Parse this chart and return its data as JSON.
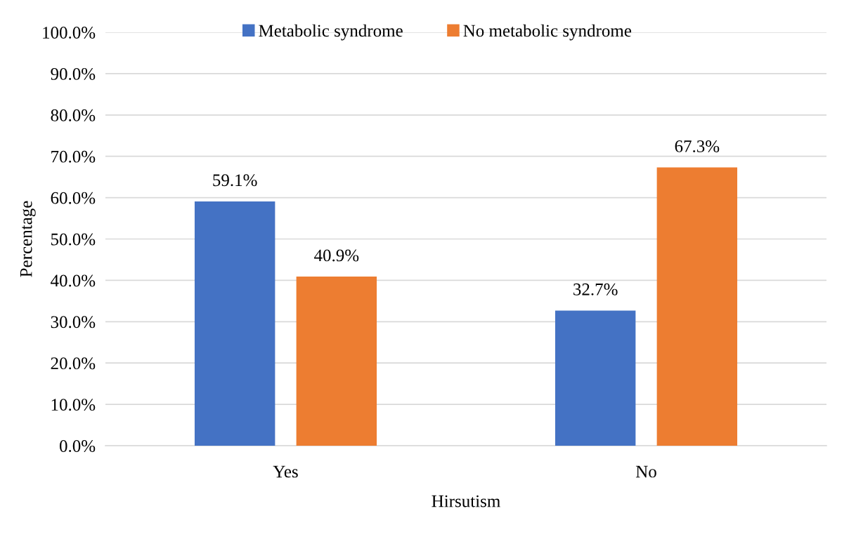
{
  "chart_data": {
    "type": "bar",
    "categories": [
      "Yes",
      "No"
    ],
    "xlabel": "Hirsutism",
    "ylabel": "Percentage",
    "series": [
      {
        "name": "Metabolic syndrome",
        "color": "#4472c4",
        "values": [
          59.1,
          32.7
        ],
        "value_labels": [
          "59.1%",
          "32.7%"
        ]
      },
      {
        "name": "No metabolic syndrome",
        "color": "#ed7d31",
        "values": [
          40.9,
          67.3
        ],
        "value_labels": [
          "40.9%",
          "67.3%"
        ]
      }
    ],
    "ylim": [
      0,
      100
    ],
    "yticks": [
      {
        "value": 0,
        "label": "0.0%"
      },
      {
        "value": 10,
        "label": "10.0%"
      },
      {
        "value": 20,
        "label": "20.0%"
      },
      {
        "value": 30,
        "label": "30.0%"
      },
      {
        "value": 40,
        "label": "40.0%"
      },
      {
        "value": 50,
        "label": "50.0%"
      },
      {
        "value": 60,
        "label": "60.0%"
      },
      {
        "value": 70,
        "label": "70.0%"
      },
      {
        "value": 80,
        "label": "80.0%"
      },
      {
        "value": 90,
        "label": "90.0%"
      },
      {
        "value": 100,
        "label": "100.0%"
      }
    ],
    "grid": "y",
    "legend": "top"
  }
}
